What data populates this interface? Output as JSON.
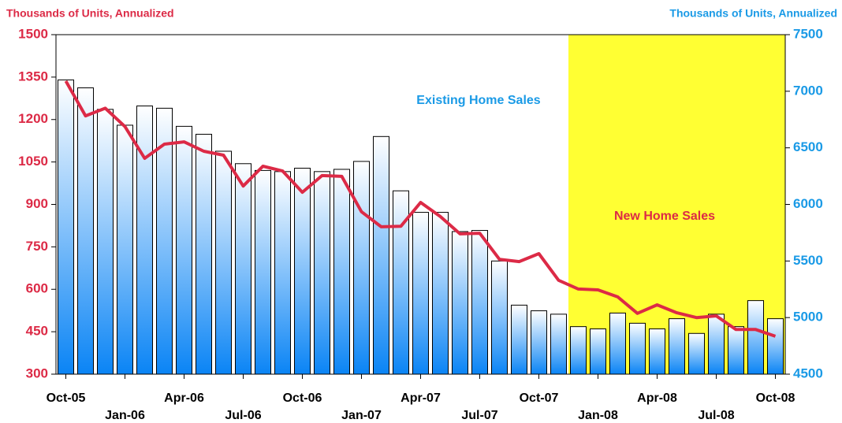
{
  "chart_data": {
    "type": "bar-line",
    "y_label": "Thousands of Units, Annualized",
    "y2_label": "Thousands of Units, Annualized",
    "categories": [
      "Oct-05",
      null,
      null,
      "Jan-06",
      null,
      null,
      "Apr-06",
      null,
      null,
      "Jul-06",
      null,
      null,
      "Oct-06",
      null,
      null,
      "Jan-07",
      null,
      null,
      "Apr-07",
      null,
      null,
      "Jul-07",
      null,
      null,
      "Oct-07",
      null,
      null,
      "Jan-08",
      null,
      null,
      "Apr-08",
      null,
      null,
      "Jul-08",
      null,
      null,
      "Oct-08"
    ],
    "series": [
      {
        "name": "Existing Home Sales",
        "type": "bar",
        "axis": "y2",
        "color": "#0a84f5",
        "values": [
          7100,
          7030,
          6840,
          6700,
          6870,
          6850,
          6690,
          6620,
          6470,
          6360,
          6300,
          6290,
          6320,
          6290,
          6310,
          6380,
          6600,
          6120,
          5930,
          5930,
          5760,
          5770,
          5500,
          5110,
          5060,
          5030,
          4920,
          4900,
          5040,
          4950,
          4900,
          4990,
          4860,
          5030,
          4920,
          5150,
          4990
        ]
      },
      {
        "name": "New Home Sales",
        "type": "line",
        "axis": "y",
        "color": "#dc2a46",
        "values": [
          1336,
          1213,
          1240,
          1175,
          1063,
          1113,
          1121,
          1088,
          1074,
          965,
          1035,
          1018,
          943,
          1002,
          999,
          874,
          821,
          823,
          907,
          857,
          796,
          798,
          706,
          698,
          726,
          632,
          601,
          598,
          573,
          515,
          545,
          517,
          500,
          506,
          458,
          458,
          434
        ]
      }
    ],
    "ylim": [
      300,
      1500
    ],
    "yticks": [
      300,
      450,
      600,
      750,
      900,
      1050,
      1200,
      1350,
      1500
    ],
    "y2lim": [
      4500,
      7500
    ],
    "y2ticks": [
      4500,
      5000,
      5500,
      6000,
      6500,
      7000,
      7500
    ],
    "shade": {
      "from": 26,
      "color": "#ffff33"
    }
  }
}
